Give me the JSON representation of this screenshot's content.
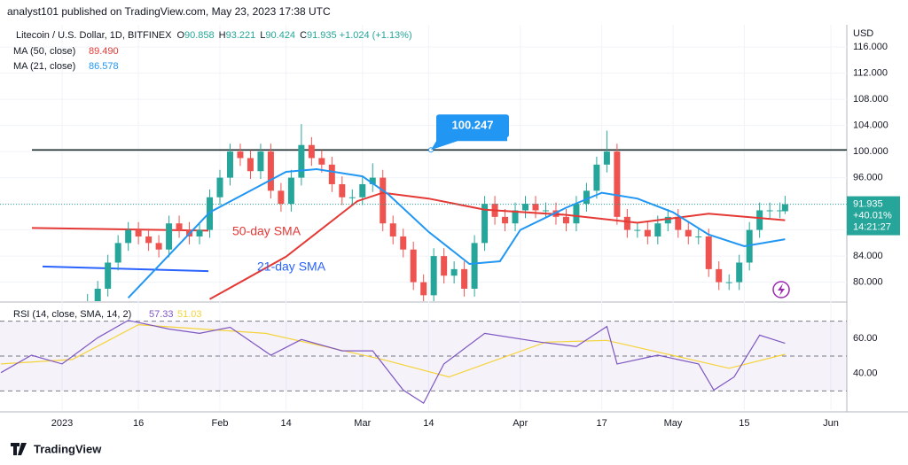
{
  "header": "analyst101 published on TradingView.com, May 23, 2023 17:38 UTC",
  "footer": "TradingView",
  "chart_data": {
    "type": "candlestick",
    "symbol": "Litecoin / U.S. Dollar, 1D, BITFINEX",
    "quote_labels": [
      "O",
      "H",
      "L",
      "C"
    ],
    "change": "+1.024 (+1.13%)",
    "currency": "USD",
    "up_color": "#26a69a",
    "down_color": "#ef5350",
    "x": [
      "2023-01-06",
      "2023-01-08",
      "2023-01-10",
      "2023-01-12",
      "2023-01-14",
      "2023-01-16",
      "2023-01-18",
      "2023-01-20",
      "2023-01-22",
      "2023-01-24",
      "2023-01-26",
      "2023-01-28",
      "2023-01-30",
      "2023-02-01",
      "2023-02-03",
      "2023-02-05",
      "2023-02-07",
      "2023-02-09",
      "2023-02-11",
      "2023-02-13",
      "2023-02-15",
      "2023-02-17",
      "2023-02-19",
      "2023-02-21",
      "2023-02-23",
      "2023-02-25",
      "2023-02-27",
      "2023-03-01",
      "2023-03-03",
      "2023-03-05",
      "2023-03-07",
      "2023-03-09",
      "2023-03-11",
      "2023-03-13",
      "2023-03-15",
      "2023-03-17",
      "2023-03-19",
      "2023-03-21",
      "2023-03-23",
      "2023-03-25",
      "2023-03-27",
      "2023-03-29",
      "2023-03-31",
      "2023-04-02",
      "2023-04-04",
      "2023-04-06",
      "2023-04-08",
      "2023-04-10",
      "2023-04-12",
      "2023-04-14",
      "2023-04-16",
      "2023-04-18",
      "2023-04-20",
      "2023-04-22",
      "2023-04-24",
      "2023-04-26",
      "2023-04-28",
      "2023-04-30",
      "2023-05-02",
      "2023-05-04",
      "2023-05-06",
      "2023-05-08",
      "2023-05-10",
      "2023-05-12",
      "2023-05-14",
      "2023-05-16",
      "2023-05-18",
      "2023-05-20",
      "2023-05-22",
      "2023-05-23"
    ],
    "ohlc": [
      [
        76,
        78.2,
        74.8,
        77
      ],
      [
        77,
        80.2,
        75.8,
        79
      ],
      [
        79,
        84.2,
        77.8,
        83
      ],
      [
        83,
        87.2,
        81.8,
        86
      ],
      [
        86,
        89.2,
        84.8,
        88
      ],
      [
        88,
        89.2,
        85.8,
        87
      ],
      [
        87,
        88.2,
        84.8,
        86
      ],
      [
        86,
        87.2,
        83.8,
        85
      ],
      [
        85,
        90.2,
        83.8,
        89
      ],
      [
        89,
        90.2,
        86.8,
        88
      ],
      [
        88,
        89.2,
        85.8,
        87
      ],
      [
        87,
        89.2,
        85.8,
        88
      ],
      [
        88,
        94.2,
        86.8,
        93
      ],
      [
        93,
        97.2,
        91.8,
        96
      ],
      [
        96,
        101.2,
        94.8,
        100
      ],
      [
        100,
        101.2,
        97.8,
        99
      ],
      [
        99,
        100.2,
        95.8,
        97
      ],
      [
        97,
        101.2,
        95.8,
        100
      ],
      [
        100,
        101.2,
        92.8,
        94
      ],
      [
        94,
        95.2,
        90.8,
        92
      ],
      [
        92,
        97.2,
        90.8,
        96
      ],
      [
        96,
        104.2,
        94.8,
        101
      ],
      [
        101,
        102.2,
        97.8,
        99
      ],
      [
        99,
        100.2,
        96.8,
        98
      ],
      [
        98,
        99.2,
        93.8,
        95
      ],
      [
        95,
        96.2,
        91.8,
        93
      ],
      [
        93,
        94.2,
        91.8,
        93
      ],
      [
        93,
        96.2,
        91.8,
        95
      ],
      [
        95,
        98.2,
        93.8,
        96
      ],
      [
        96,
        97.2,
        87.8,
        89
      ],
      [
        89,
        90.2,
        85.8,
        87
      ],
      [
        87,
        88.2,
        83.8,
        85
      ],
      [
        85,
        86.2,
        78.8,
        80
      ],
      [
        80,
        81.2,
        76.8,
        78
      ],
      [
        78,
        85.2,
        76.8,
        84
      ],
      [
        84,
        85.2,
        79.8,
        81
      ],
      [
        81,
        83.2,
        79.8,
        82
      ],
      [
        82,
        83.2,
        77.8,
        79
      ],
      [
        79,
        87.2,
        77.8,
        86
      ],
      [
        86,
        93.2,
        84.8,
        92
      ],
      [
        92,
        93.2,
        88.8,
        90
      ],
      [
        90,
        91.2,
        87.8,
        89
      ],
      [
        89,
        92.2,
        87.8,
        91
      ],
      [
        91,
        93.2,
        89.8,
        92
      ],
      [
        92,
        93.2,
        89.8,
        91
      ],
      [
        91,
        92.2,
        89.8,
        91
      ],
      [
        91,
        92.2,
        88.8,
        90
      ],
      [
        90,
        91.2,
        87.8,
        89
      ],
      [
        89,
        93.2,
        87.8,
        92
      ],
      [
        92,
        95.2,
        90.8,
        94
      ],
      [
        94,
        99.2,
        92.8,
        98
      ],
      [
        98,
        103.2,
        96.8,
        100
      ],
      [
        100,
        101.2,
        88.8,
        90
      ],
      [
        90,
        91.2,
        86.8,
        88
      ],
      [
        88,
        89.2,
        86.8,
        88
      ],
      [
        88,
        89.2,
        85.8,
        87
      ],
      [
        87,
        90.2,
        85.8,
        89
      ],
      [
        89,
        91.2,
        87.8,
        90
      ],
      [
        90,
        91.2,
        86.8,
        88
      ],
      [
        88,
        89.2,
        85.8,
        87
      ],
      [
        87,
        88.2,
        85.8,
        87
      ],
      [
        87,
        88.2,
        80.8,
        82
      ],
      [
        82,
        83.2,
        78.8,
        80
      ],
      [
        80,
        81.2,
        78.8,
        80
      ],
      [
        80,
        84.2,
        78.8,
        83
      ],
      [
        83,
        89.2,
        81.8,
        88
      ],
      [
        88,
        92.2,
        86.8,
        91
      ],
      [
        91,
        92.2,
        89.8,
        91
      ],
      [
        91,
        92.2,
        89.8,
        91
      ],
      [
        90.858,
        93.221,
        90.424,
        91.935
      ]
    ],
    "last_change_pct": "+40.01%",
    "countdown": "14:21:27",
    "series": [
      {
        "name": "MA (50, close)",
        "color": "#e53935",
        "value_label": "89.490",
        "x": [
          "2023-01-30",
          "2023-02-14",
          "2023-02-28",
          "2023-03-05",
          "2023-03-14",
          "2023-03-25",
          "2023-04-10",
          "2023-04-24",
          "2023-05-08",
          "2023-05-23"
        ],
        "values": [
          77.4,
          83.9,
          92.4,
          93.7,
          92.8,
          91.1,
          90.3,
          89.1,
          90.5,
          89.49
        ]
      },
      {
        "name": "MA (21, close)",
        "color": "#2196f3",
        "value_label": "86.578",
        "x": [
          "2023-01-14",
          "2023-01-30",
          "2023-02-14",
          "2023-02-20",
          "2023-03-01",
          "2023-03-06",
          "2023-03-14",
          "2023-03-22",
          "2023-03-28",
          "2023-04-01",
          "2023-04-10",
          "2023-04-17",
          "2023-04-24",
          "2023-05-01",
          "2023-05-08",
          "2023-05-15",
          "2023-05-23"
        ],
        "values": [
          77.6,
          90.7,
          96.9,
          97.3,
          96.2,
          93.5,
          87.7,
          82.8,
          83.2,
          88,
          91.4,
          93.7,
          92.8,
          90.7,
          87.3,
          85.5,
          86.578
        ]
      }
    ],
    "annotations": [
      "50-day SMA",
      "21-day SMA"
    ],
    "resistance": 100.247,
    "trendlines": [
      {
        "color": "#e53935",
        "values": [
          88.3,
          87.9
        ]
      },
      {
        "color": "#2962ff",
        "values": [
          82.4,
          81.7
        ]
      }
    ],
    "ylim": [
      77.1,
      119.4
    ],
    "yticks": [
      {
        "value": 80,
        "label": "80.000"
      },
      {
        "value": 84,
        "label": "84.000"
      },
      {
        "value": 88,
        "label": "88.000"
      },
      {
        "value": 92,
        "label": "92.000"
      },
      {
        "value": 96,
        "label": "96.000"
      },
      {
        "value": 100,
        "label": "100.000"
      },
      {
        "value": 104,
        "label": "104.000"
      },
      {
        "value": 108,
        "label": "108.000"
      },
      {
        "value": 112,
        "label": "112.000"
      },
      {
        "value": 116,
        "label": "116.000"
      }
    ],
    "xticks": [
      {
        "value": "2023-01-01",
        "label": "2023"
      },
      {
        "value": "2023-01-16",
        "label": "16"
      },
      {
        "value": "2023-02-01",
        "label": "Feb"
      },
      {
        "value": "2023-02-14",
        "label": "14"
      },
      {
        "value": "2023-03-01",
        "label": "Mar"
      },
      {
        "value": "2023-03-14",
        "label": "14"
      },
      {
        "value": "2023-04-01",
        "label": "Apr"
      },
      {
        "value": "2023-04-17",
        "label": "17"
      },
      {
        "value": "2023-05-01",
        "label": "May"
      },
      {
        "value": "2023-05-15",
        "label": "15"
      },
      {
        "value": "2023-06-01",
        "label": "Jun"
      }
    ],
    "rsi": {
      "name": "RSI (14, close, SMA, 14, 2)",
      "color": "#7e57c2",
      "value_label": "57.33",
      "x": [
        "2022-12-20",
        "2022-12-26",
        "2023-01-01",
        "2023-01-08",
        "2023-01-14",
        "2023-01-18",
        "2023-01-22",
        "2023-01-28",
        "2023-02-03",
        "2023-02-11",
        "2023-02-17",
        "2023-02-25",
        "2023-03-03",
        "2023-03-09",
        "2023-03-13",
        "2023-03-17",
        "2023-03-25",
        "2023-04-05",
        "2023-04-12",
        "2023-04-18",
        "2023-04-20",
        "2023-04-28",
        "2023-05-06",
        "2023-05-09",
        "2023-05-13",
        "2023-05-18",
        "2023-05-23"
      ],
      "values": [
        40.5,
        50.5,
        45.5,
        60.5,
        70.5,
        68,
        65.5,
        63,
        66.5,
        50.5,
        59.5,
        53,
        53,
        30.5,
        23,
        45.5,
        63,
        58,
        55.5,
        67,
        45.5,
        50.5,
        45.5,
        30.5,
        38,
        62,
        57.33
      ],
      "sma": {
        "color": "#f5d33a",
        "value_label": "51.03",
        "x": [
          "2022-12-20",
          "2023-01-03",
          "2023-01-16",
          "2023-02-10",
          "2023-03-05",
          "2023-03-18",
          "2023-04-06",
          "2023-04-18",
          "2023-05-12",
          "2023-05-23"
        ],
        "values": [
          45.5,
          48,
          68,
          63,
          48,
          38,
          58,
          59,
          43,
          51.03
        ]
      },
      "ylim": [
        19,
        80.5
      ],
      "bands": [
        30,
        50,
        70
      ],
      "yticks": [
        {
          "value": 40,
          "label": "40.00"
        },
        {
          "value": 60,
          "label": "60.00"
        }
      ]
    }
  }
}
